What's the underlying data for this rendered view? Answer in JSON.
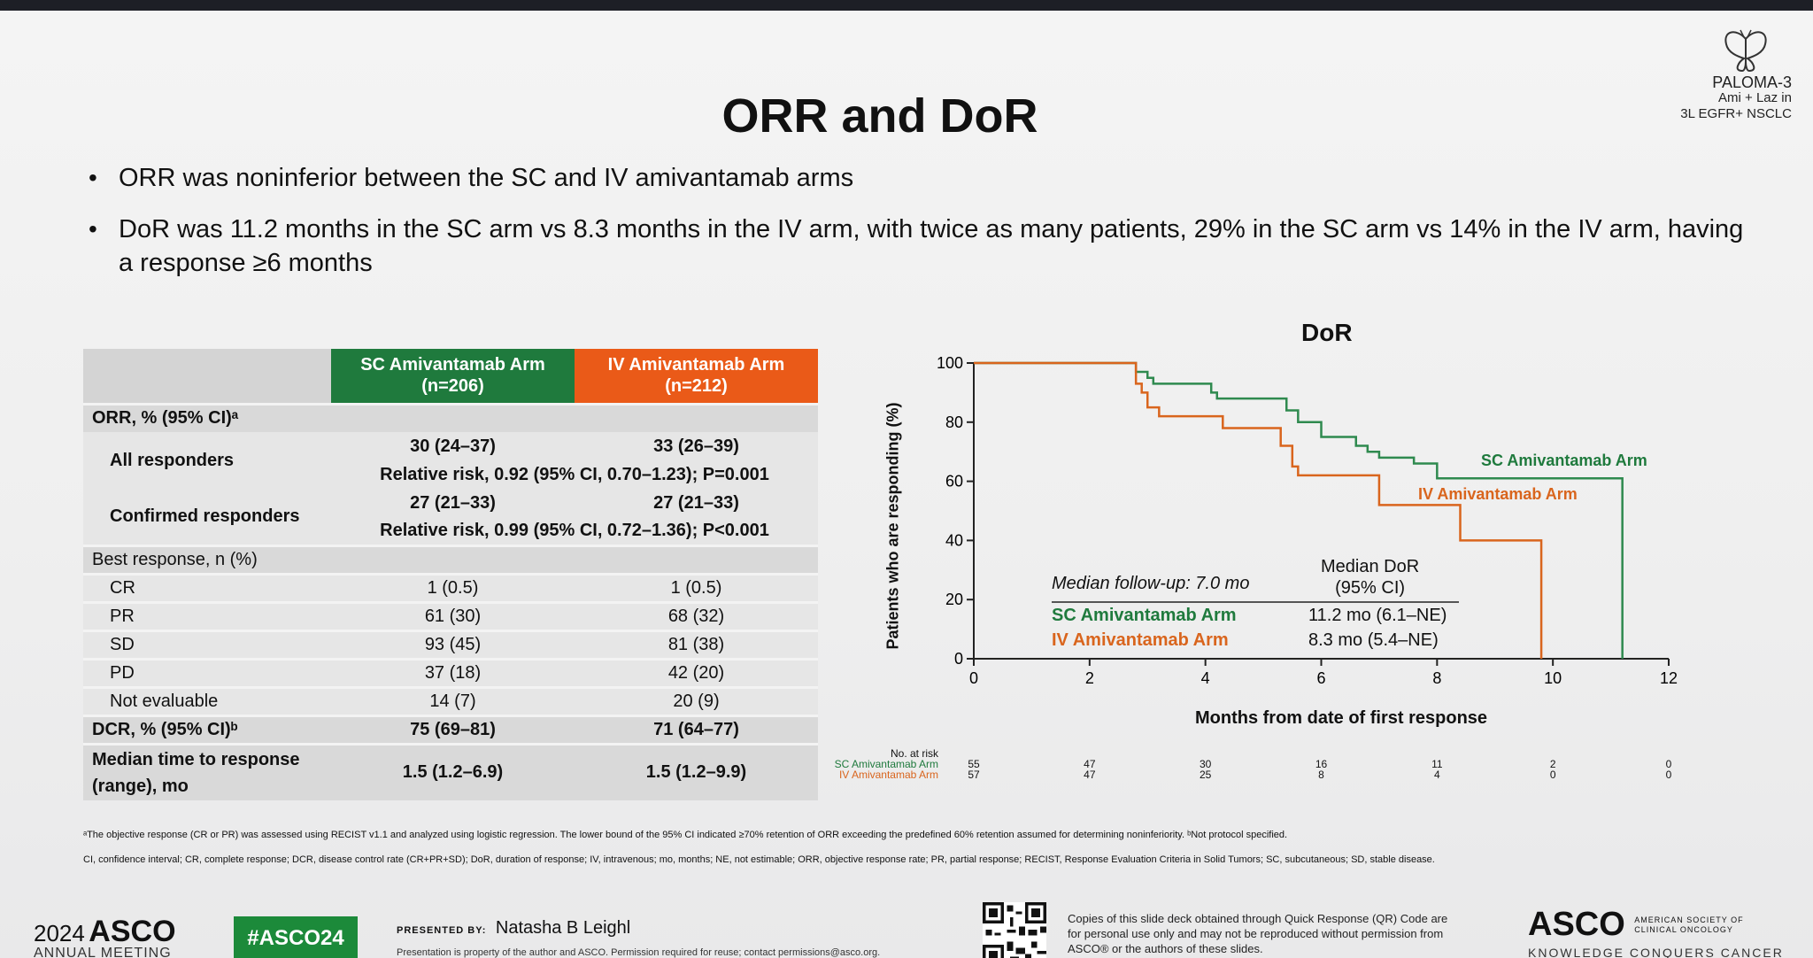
{
  "slide": {
    "title": "ORR and DoR",
    "logo": {
      "brand": "PALOMA-3",
      "line1": "Ami + Laz in",
      "line2": "3L EGFR+ NSCLC"
    },
    "bullets": [
      "ORR was noninferior between the SC and IV amivantamab arms",
      "DoR was 11.2 months in the SC arm vs 8.3 months in the IV arm, with twice as many patients, 29% in the SC arm vs 14% in the IV arm, having a response ≥6 months"
    ]
  },
  "table": {
    "headers": {
      "sc": "SC Amivantamab Arm (n=206)",
      "iv": "IV Amivantamab Arm (n=212)"
    },
    "orr_label": "ORR, % (95% CI)ᵃ",
    "all_responders": {
      "label": "All responders",
      "sc": "30 (24–37)",
      "iv": "33 (26–39)",
      "rr": "Relative risk, 0.92 (95% CI, 0.70–1.23); P=0.001"
    },
    "confirmed": {
      "label": "Confirmed responders",
      "sc": "27 (21–33)",
      "iv": "27 (21–33)",
      "rr": "Relative risk, 0.99 (95% CI, 0.72–1.36); P<0.001"
    },
    "best_label": "Best response, n (%)",
    "best": [
      {
        "label": "CR",
        "sc": "1 (0.5)",
        "iv": "1 (0.5)"
      },
      {
        "label": "PR",
        "sc": "61 (30)",
        "iv": "68 (32)"
      },
      {
        "label": "SD",
        "sc": "93 (45)",
        "iv": "81 (38)"
      },
      {
        "label": "PD",
        "sc": "37 (18)",
        "iv": "42 (20)"
      },
      {
        "label": "Not evaluable",
        "sc": "14 (7)",
        "iv": "20 (9)"
      }
    ],
    "dcr": {
      "label": "DCR, % (95% CI)ᵇ",
      "sc": "75 (69–81)",
      "iv": "71 (64–77)"
    },
    "median_time": {
      "label": "Median time to response (range), mo",
      "sc": "1.5 (1.2–6.9)",
      "iv": "1.5 (1.2–9.9)"
    }
  },
  "chart_data": {
    "type": "line",
    "title": "DoR",
    "xlabel": "Months from date of first response",
    "ylabel": "Patients who are responding (%)",
    "xlim": [
      0,
      12
    ],
    "ylim": [
      0,
      100
    ],
    "xticks": [
      0,
      2,
      4,
      6,
      8,
      10,
      12
    ],
    "yticks": [
      0,
      20,
      40,
      60,
      80,
      100
    ],
    "series": [
      {
        "name": "SC Amivantamab Arm",
        "color": "#2f8a4f",
        "x": [
          0,
          2.6,
          2.8,
          3.0,
          3.1,
          3.5,
          4.1,
          4.2,
          5.4,
          5.6,
          6.0,
          6.6,
          6.8,
          7.0,
          7.6,
          8.0,
          11.2,
          11.2
        ],
        "y": [
          100,
          100,
          97,
          95,
          93,
          93,
          90,
          88,
          84,
          80,
          75,
          72,
          70,
          68,
          66,
          61,
          61,
          0
        ]
      },
      {
        "name": "IV Amivantamab Arm",
        "color": "#d9651d",
        "x": [
          0,
          2.5,
          2.8,
          2.9,
          3.0,
          3.2,
          3.9,
          4.3,
          5.3,
          5.5,
          5.6,
          7.0,
          8.4,
          9.8,
          9.8
        ],
        "y": [
          100,
          100,
          93,
          90,
          85,
          82,
          82,
          78,
          72,
          65,
          62,
          52,
          40,
          40,
          0
        ]
      }
    ],
    "labels": {
      "sc": "SC Amivantamab Arm",
      "iv": "IV Amivantamab Arm"
    },
    "legend": {
      "followup": "Median follow-up: 7.0 mo",
      "median_header_1": "Median DoR",
      "median_header_2": "(95% CI)",
      "sc_name": "SC Amivantamab Arm",
      "sc_value": "11.2 mo (6.1–NE)",
      "iv_name": "IV Amivantamab Arm",
      "iv_value": "8.3 mo (5.4–NE)"
    },
    "at_risk": {
      "label": "No. at risk",
      "sc_label": "SC Amivantamab Arm",
      "iv_label": "IV Amivantamab Arm",
      "sc": [
        "55",
        "47",
        "30",
        "16",
        "11",
        "2",
        "0"
      ],
      "iv": [
        "57",
        "47",
        "25",
        "8",
        "4",
        "0",
        "0"
      ]
    }
  },
  "footnotes": {
    "a": "ᵃThe objective response (CR or PR) was assessed using RECIST v1.1 and analyzed using logistic regression. The lower bound of the 95% CI indicated ≥70% retention of ORR exceeding the predefined 60% retention assumed for determining noninferiority. ᵇNot protocol specified.",
    "abbrev": "CI, confidence interval; CR, complete response; DCR, disease control rate (CR+PR+SD); DoR, duration of response; IV, intravenous; mo, months; NE, not estimable; ORR, objective response rate; PR, partial response; RECIST, Response Evaluation Criteria in Solid Tumors; SC, subcutaneous; SD, stable disease."
  },
  "bottom": {
    "year": "2024",
    "asco": "ASCO",
    "annual": "ANNUAL MEETING",
    "hashtag": "#ASCO24",
    "presented_by": "PRESENTED BY:",
    "presenter": "Natasha B Leighl",
    "property_note": "Presentation is property of the author and ASCO. Permission required for reuse; contact permissions@asco.org.",
    "copies": "Copies of this slide deck obtained through Quick Response (QR) Code are for personal use only and may not be reproduced without permission from ASCO® or the authors of these slides.",
    "asco_right": "ASCO",
    "society_1": "AMERICAN SOCIETY OF",
    "society_2": "CLINICAL ONCOLOGY",
    "kcc": "KNOWLEDGE CONQUERS CANCER"
  }
}
